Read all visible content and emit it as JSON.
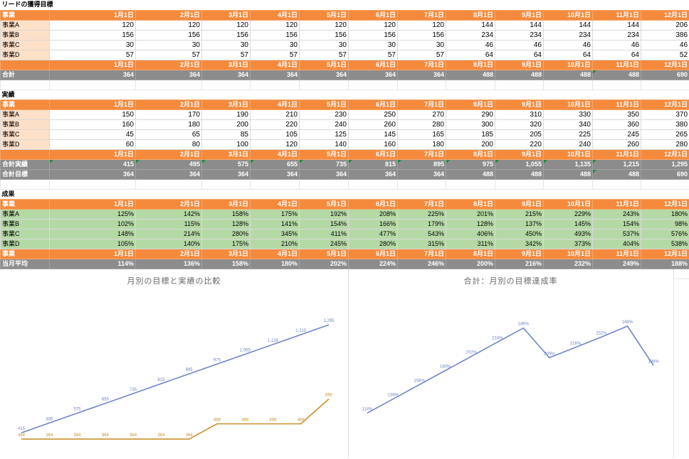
{
  "months": [
    "1月1日",
    "2月1日",
    "3月1日",
    "4月1日",
    "5月1日",
    "6月1日",
    "7月1日",
    "8月1日",
    "9月1日",
    "10月1日",
    "11月1日",
    "12月1日"
  ],
  "sections": [
    {
      "title": "リードの獲得目標",
      "rows": [
        {
          "type": "head",
          "label": "事業"
        },
        {
          "type": "data",
          "label": "事業A",
          "values": [
            "120",
            "120",
            "120",
            "120",
            "120",
            "120",
            "120",
            "144",
            "144",
            "144",
            "144",
            "206"
          ]
        },
        {
          "type": "data",
          "label": "事業B",
          "values": [
            "156",
            "156",
            "156",
            "156",
            "156",
            "156",
            "156",
            "234",
            "234",
            "234",
            "234",
            "386"
          ]
        },
        {
          "type": "data",
          "label": "事業C",
          "values": [
            "30",
            "30",
            "30",
            "30",
            "30",
            "30",
            "30",
            "46",
            "46",
            "46",
            "46",
            "46"
          ]
        },
        {
          "type": "data",
          "label": "事業D",
          "values": [
            "57",
            "57",
            "57",
            "57",
            "57",
            "57",
            "57",
            "64",
            "64",
            "64",
            "64",
            "52"
          ]
        },
        {
          "type": "head",
          "label": ""
        },
        {
          "type": "total",
          "label": "合計",
          "values": [
            "364",
            "364",
            "364",
            "364",
            "364",
            "364",
            "364",
            "488",
            "488",
            "488",
            "488",
            "690"
          ],
          "flags": [
            10
          ]
        },
        {
          "type": "blank"
        }
      ]
    },
    {
      "title": "実績",
      "rows": [
        {
          "type": "head",
          "label": "事業"
        },
        {
          "type": "data",
          "label": "事業A",
          "values": [
            "150",
            "170",
            "190",
            "210",
            "230",
            "250",
            "270",
            "290",
            "310",
            "330",
            "350",
            "370"
          ]
        },
        {
          "type": "data",
          "label": "事業B",
          "values": [
            "160",
            "180",
            "200",
            "220",
            "240",
            "260",
            "280",
            "300",
            "320",
            "340",
            "360",
            "380"
          ]
        },
        {
          "type": "data",
          "label": "事業C",
          "values": [
            "45",
            "65",
            "85",
            "105",
            "125",
            "145",
            "165",
            "185",
            "205",
            "225",
            "245",
            "265"
          ]
        },
        {
          "type": "data",
          "label": "事業D",
          "values": [
            "60",
            "80",
            "100",
            "120",
            "140",
            "160",
            "180",
            "200",
            "220",
            "240",
            "260",
            "280"
          ]
        },
        {
          "type": "head",
          "label": ""
        },
        {
          "type": "total",
          "label": "合計実績",
          "values": [
            "415",
            "495",
            "575",
            "655",
            "735",
            "815",
            "895",
            "975",
            "1,055",
            "1,135",
            "1,215",
            "1,295"
          ],
          "flags": [
            0,
            1,
            2,
            3,
            4,
            5,
            6,
            7,
            8,
            9,
            10
          ]
        },
        {
          "type": "total",
          "label": "合計目標",
          "values": [
            "364",
            "364",
            "364",
            "364",
            "364",
            "364",
            "364",
            "488",
            "488",
            "488",
            "488",
            "690"
          ],
          "flags": [
            10
          ]
        },
        {
          "type": "blank"
        }
      ]
    },
    {
      "title": "成果",
      "rows": [
        {
          "type": "head",
          "label": "事業"
        },
        {
          "type": "pct",
          "label": "事業A",
          "values": [
            "125%",
            "142%",
            "158%",
            "175%",
            "192%",
            "208%",
            "225%",
            "201%",
            "215%",
            "229%",
            "243%",
            "180%"
          ]
        },
        {
          "type": "pct",
          "label": "事業B",
          "values": [
            "102%",
            "115%",
            "128%",
            "141%",
            "154%",
            "166%",
            "179%",
            "128%",
            "137%",
            "145%",
            "154%",
            "98%"
          ]
        },
        {
          "type": "pct",
          "label": "事業C",
          "values": [
            "148%",
            "214%",
            "280%",
            "345%",
            "411%",
            "477%",
            "543%",
            "406%",
            "450%",
            "493%",
            "537%",
            "576%"
          ]
        },
        {
          "type": "pct",
          "label": "事業D",
          "values": [
            "105%",
            "140%",
            "175%",
            "210%",
            "245%",
            "280%",
            "315%",
            "311%",
            "342%",
            "373%",
            "404%",
            "538%"
          ]
        },
        {
          "type": "head",
          "label": "事業"
        },
        {
          "type": "total",
          "label": "当月平均",
          "values": [
            "114%",
            "136%",
            "158%",
            "180%",
            "202%",
            "224%",
            "246%",
            "200%",
            "216%",
            "232%",
            "249%",
            "188%"
          ]
        },
        {
          "type": "blank"
        }
      ]
    }
  ],
  "chart_data": [
    {
      "type": "line",
      "title": "月別の目標と実績の比較",
      "x": [
        "1月1日",
        "2月1日",
        "3月1日",
        "4月1日",
        "5月1日",
        "6月1日",
        "7月1日",
        "8月1日",
        "9月1日",
        "10月1日",
        "11月1日",
        "12月1日"
      ],
      "series": [
        {
          "color": "#6f86c6",
          "values": [
            415,
            495,
            575,
            655,
            735,
            815,
            895,
            975,
            1055,
            1135,
            1215,
            1295
          ],
          "labels": [
            "415",
            "495",
            "575",
            "655",
            "735",
            "815",
            "895",
            "975",
            "1,055",
            "1,135",
            "1,215",
            "1,295"
          ]
        },
        {
          "color": "#c9902b",
          "values": [
            364,
            364,
            364,
            364,
            364,
            364,
            364,
            488,
            488,
            488,
            488,
            690
          ],
          "labels": [
            "364",
            "364",
            "364",
            "364",
            "364",
            "364",
            "364",
            "488",
            "488",
            "488",
            "488",
            "690"
          ]
        }
      ],
      "ylim": [
        300,
        1400
      ],
      "grid": false
    },
    {
      "type": "line",
      "title": "合計：月別の目標達成率",
      "x": [
        "1月1日",
        "2月1日",
        "3月1日",
        "4月1日",
        "5月1日",
        "6月1日",
        "7月1日",
        "8月1日",
        "9月1日",
        "10月1日",
        "11月1日",
        "12月1日"
      ],
      "series": [
        {
          "color": "#6f86c6",
          "values": [
            114,
            136,
            158,
            180,
            202,
            224,
            246,
            200,
            216,
            232,
            249,
            188
          ],
          "labels": [
            "114%",
            "136%",
            "158%",
            "180%",
            "202%",
            "224%",
            "246%",
            "200%",
            "216%",
            "232%",
            "249%",
            "188%"
          ]
        }
      ],
      "ylim": [
        100,
        260
      ],
      "grid": false
    }
  ]
}
